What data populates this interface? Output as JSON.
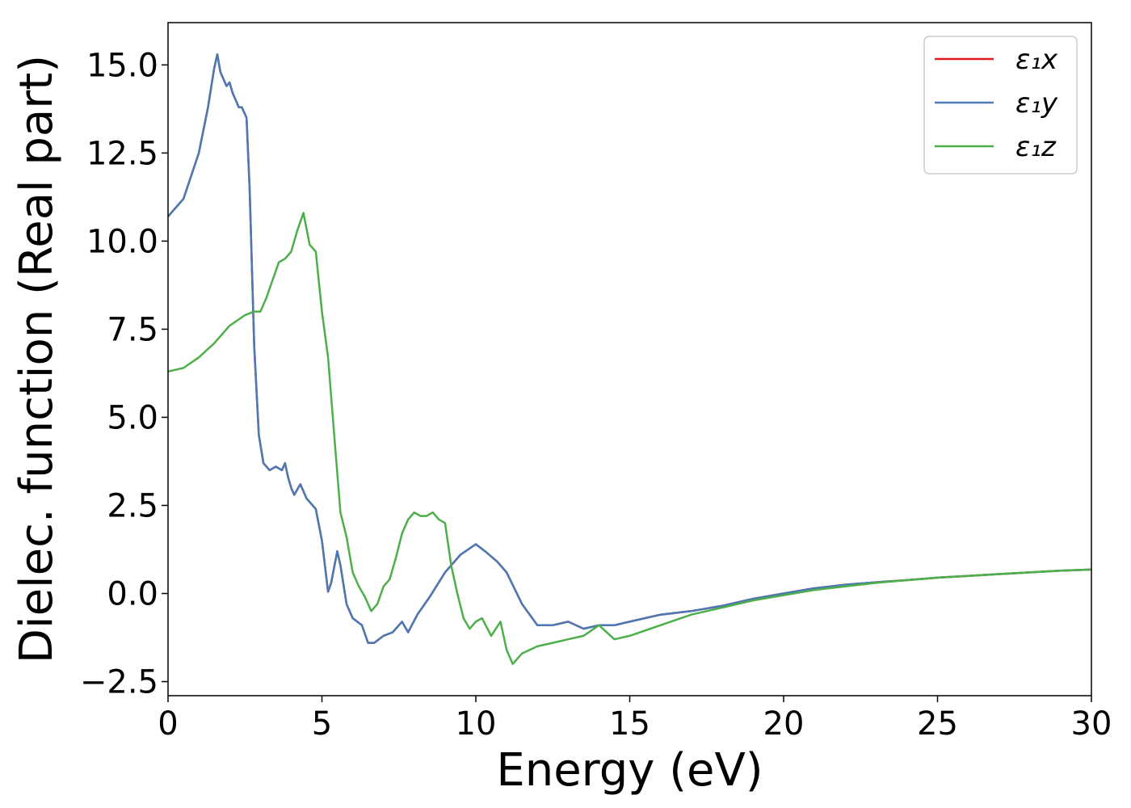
{
  "chart_data": {
    "type": "line",
    "xlabel": "Energy (eV)",
    "ylabel": "Dielec. function (Real part)",
    "xlim": [
      0,
      30
    ],
    "ylim": [
      -2.9,
      16.2
    ],
    "xticks": [
      0,
      5,
      10,
      15,
      20,
      25,
      30
    ],
    "xtick_labels": [
      "0",
      "5",
      "10",
      "15",
      "20",
      "25",
      "30"
    ],
    "yticks": [
      -2.5,
      0.0,
      2.5,
      5.0,
      7.5,
      10.0,
      12.5,
      15.0
    ],
    "ytick_labels": [
      "−2.5",
      "0.0",
      "2.5",
      "5.0",
      "7.5",
      "10.0",
      "12.5",
      "15.0"
    ],
    "grid": false,
    "legend_position": "top-right",
    "series": [
      {
        "name": "ε₁x",
        "color": "#e41a1c",
        "x": [
          0,
          0.5,
          1.0,
          1.3,
          1.5,
          1.6,
          1.7,
          1.9,
          2.0,
          2.1,
          2.3,
          2.4,
          2.55,
          2.65,
          2.8,
          2.95,
          3.1,
          3.3,
          3.5,
          3.7,
          3.8,
          3.9,
          4.0,
          4.1,
          4.3,
          4.5,
          4.8,
          5.0,
          5.2,
          5.3,
          5.5,
          5.6,
          5.8,
          6.0,
          6.3,
          6.5,
          6.7,
          7.0,
          7.3,
          7.6,
          7.8,
          8.1,
          8.5,
          9.0,
          9.5,
          10.0,
          10.3,
          10.7,
          11.0,
          11.5,
          12.0,
          12.5,
          13.0,
          13.5,
          14.0,
          14.5,
          15.0,
          16.0,
          17.0,
          18.0,
          19.0,
          20.0,
          21.0,
          22.0,
          23.0,
          24.0,
          25.0,
          26.0,
          27.0,
          28.0,
          29.0,
          30.0
        ],
        "values": [
          10.7,
          11.2,
          12.5,
          13.8,
          14.9,
          15.3,
          14.8,
          14.4,
          14.5,
          14.2,
          13.8,
          13.8,
          13.5,
          11.5,
          7.0,
          4.5,
          3.7,
          3.5,
          3.6,
          3.5,
          3.7,
          3.3,
          3.0,
          2.8,
          3.1,
          2.7,
          2.4,
          1.5,
          0.05,
          0.3,
          1.2,
          0.8,
          -0.3,
          -0.7,
          -0.9,
          -1.4,
          -1.4,
          -1.2,
          -1.1,
          -0.8,
          -1.1,
          -0.6,
          -0.1,
          0.6,
          1.1,
          1.4,
          1.2,
          0.9,
          0.6,
          -0.3,
          -0.9,
          -0.9,
          -0.8,
          -1.0,
          -0.9,
          -0.9,
          -0.8,
          -0.6,
          -0.5,
          -0.35,
          -0.15,
          0.0,
          0.15,
          0.25,
          0.32,
          0.38,
          0.45,
          0.5,
          0.55,
          0.6,
          0.65,
          0.68
        ]
      },
      {
        "name": "ε₁y",
        "color": "#4a7ab5",
        "x": [
          0,
          0.5,
          1.0,
          1.3,
          1.5,
          1.6,
          1.7,
          1.9,
          2.0,
          2.1,
          2.3,
          2.4,
          2.55,
          2.65,
          2.8,
          2.95,
          3.1,
          3.3,
          3.5,
          3.7,
          3.8,
          3.9,
          4.0,
          4.1,
          4.3,
          4.5,
          4.8,
          5.0,
          5.2,
          5.3,
          5.5,
          5.6,
          5.8,
          6.0,
          6.3,
          6.5,
          6.7,
          7.0,
          7.3,
          7.6,
          7.8,
          8.1,
          8.5,
          9.0,
          9.5,
          10.0,
          10.3,
          10.7,
          11.0,
          11.5,
          12.0,
          12.5,
          13.0,
          13.5,
          14.0,
          14.5,
          15.0,
          16.0,
          17.0,
          18.0,
          19.0,
          20.0,
          21.0,
          22.0,
          23.0,
          24.0,
          25.0,
          26.0,
          27.0,
          28.0,
          29.0,
          30.0
        ],
        "values": [
          10.7,
          11.2,
          12.5,
          13.8,
          14.9,
          15.3,
          14.8,
          14.4,
          14.5,
          14.2,
          13.8,
          13.8,
          13.5,
          11.5,
          7.0,
          4.5,
          3.7,
          3.5,
          3.6,
          3.5,
          3.7,
          3.3,
          3.0,
          2.8,
          3.1,
          2.7,
          2.4,
          1.5,
          0.05,
          0.3,
          1.2,
          0.8,
          -0.3,
          -0.7,
          -0.9,
          -1.4,
          -1.4,
          -1.2,
          -1.1,
          -0.8,
          -1.1,
          -0.6,
          -0.1,
          0.6,
          1.1,
          1.4,
          1.2,
          0.9,
          0.6,
          -0.3,
          -0.9,
          -0.9,
          -0.8,
          -1.0,
          -0.9,
          -0.9,
          -0.8,
          -0.6,
          -0.5,
          -0.35,
          -0.15,
          0.0,
          0.15,
          0.25,
          0.32,
          0.38,
          0.45,
          0.5,
          0.55,
          0.6,
          0.65,
          0.68
        ]
      },
      {
        "name": "ε₁z",
        "color": "#4daf4a",
        "x": [
          0,
          0.5,
          1.0,
          1.5,
          2.0,
          2.5,
          2.8,
          3.0,
          3.2,
          3.4,
          3.6,
          3.8,
          4.0,
          4.2,
          4.4,
          4.6,
          4.8,
          5.0,
          5.2,
          5.4,
          5.6,
          5.8,
          6.0,
          6.2,
          6.4,
          6.6,
          6.8,
          7.0,
          7.2,
          7.4,
          7.6,
          7.8,
          8.0,
          8.2,
          8.4,
          8.6,
          8.8,
          9.0,
          9.2,
          9.4,
          9.6,
          9.8,
          10.0,
          10.2,
          10.5,
          10.8,
          11.0,
          11.2,
          11.5,
          12.0,
          12.5,
          13.0,
          13.5,
          14.0,
          14.5,
          15.0,
          16.0,
          17.0,
          18.0,
          19.0,
          20.0,
          21.0,
          22.0,
          23.0,
          24.0,
          25.0,
          26.0,
          27.0,
          28.0,
          29.0,
          30.0
        ],
        "values": [
          6.3,
          6.4,
          6.7,
          7.1,
          7.6,
          7.9,
          8.0,
          8.0,
          8.4,
          8.9,
          9.4,
          9.5,
          9.7,
          10.3,
          10.8,
          9.9,
          9.7,
          8.0,
          6.7,
          4.5,
          2.3,
          1.6,
          0.6,
          0.2,
          -0.1,
          -0.5,
          -0.3,
          0.2,
          0.4,
          1.0,
          1.7,
          2.1,
          2.3,
          2.2,
          2.2,
          2.3,
          2.1,
          2.0,
          0.8,
          0.0,
          -0.7,
          -1.0,
          -0.8,
          -0.7,
          -1.2,
          -0.8,
          -1.6,
          -2.0,
          -1.7,
          -1.5,
          -1.4,
          -1.3,
          -1.2,
          -0.9,
          -1.3,
          -1.2,
          -0.9,
          -0.6,
          -0.4,
          -0.2,
          -0.05,
          0.1,
          0.2,
          0.3,
          0.38,
          0.45,
          0.5,
          0.55,
          0.6,
          0.65,
          0.68
        ]
      }
    ]
  }
}
